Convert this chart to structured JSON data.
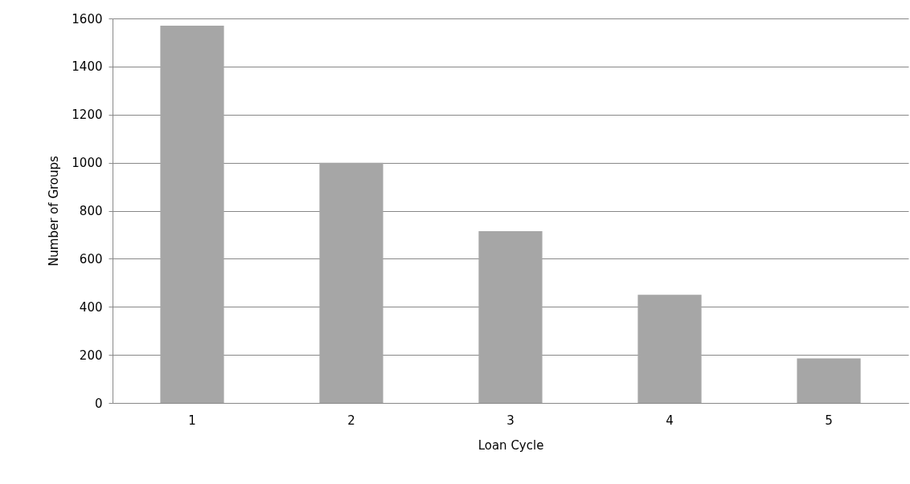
{
  "chart_data": {
    "type": "bar",
    "xlabel": "Loan Cycle",
    "ylabel": "Number of Groups",
    "categories": [
      "1",
      "2",
      "3",
      "4",
      "5"
    ],
    "values": [
      1570,
      1000,
      715,
      450,
      185
    ],
    "color": "#a6a6a6",
    "ylim": [
      0,
      1600
    ],
    "yticks": [
      0,
      200,
      400,
      600,
      800,
      1000,
      1200,
      1400,
      1600
    ],
    "grid": "y"
  }
}
